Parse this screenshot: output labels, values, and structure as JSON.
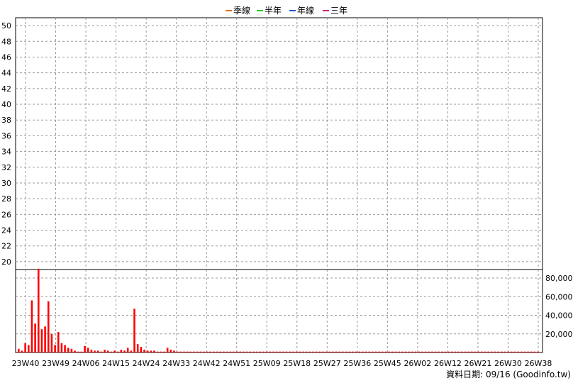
{
  "chart_data": {
    "type": "candlestick",
    "legend": [
      {
        "name": "季線",
        "color": "#e07020"
      },
      {
        "name": "半年",
        "color": "#22cc22"
      },
      {
        "name": "年線",
        "color": "#2255cc"
      },
      {
        "name": "三年",
        "color": "#cc2277"
      }
    ],
    "price_axis": {
      "ticks": [
        "20",
        "22",
        "24",
        "26",
        "28",
        "30",
        "32",
        "34",
        "36",
        "38",
        "40",
        "42",
        "44",
        "46",
        "48",
        "50"
      ],
      "range": [
        19,
        51
      ]
    },
    "volume_axis": {
      "ticks": [
        "20,000",
        "40,000",
        "60,000",
        "80,000"
      ],
      "range": [
        0,
        80000
      ]
    },
    "x_labels": [
      "23W40",
      "23W49",
      "24W06",
      "24W15",
      "24W24",
      "24W33",
      "24W42",
      "24W51",
      "25W09",
      "25W18",
      "25W27",
      "25W36",
      "25W45",
      "26W02",
      "26W12",
      "26W21",
      "26W30",
      "26W38"
    ],
    "series_colors": {
      "up": "#ff0000",
      "down": "#00a000",
      "volume": "#ff0000"
    },
    "volume": [
      4000,
      2000,
      10000,
      8000,
      56000,
      31000,
      90000,
      25000,
      28000,
      55000,
      20000,
      8000,
      22000,
      10000,
      8000,
      5000,
      4000,
      2000,
      1000,
      1000,
      7000,
      5000,
      3000,
      2000,
      2000,
      1000,
      3000,
      2000,
      1000,
      2000,
      1000,
      3000,
      2000,
      5000,
      2000,
      47000,
      9000,
      6000,
      3000,
      2000,
      2000,
      2000,
      1000,
      1000,
      1000,
      5000,
      3000,
      2000,
      1000,
      1000,
      1000,
      1000,
      1000,
      1000,
      1000,
      1000,
      1000,
      1000,
      1000,
      1000,
      1000,
      1000,
      1000,
      1000,
      1000,
      1000,
      1000,
      1000,
      1000,
      1000,
      1000,
      1000,
      1000,
      1000,
      1000,
      1000,
      1000,
      1000,
      1000,
      1000,
      1000,
      1000,
      1000,
      1000,
      1000,
      1000,
      1000,
      1000,
      1000,
      1000,
      1000,
      1000,
      1000,
      1000,
      1000,
      1000,
      1000,
      1000,
      1000,
      1000,
      1000,
      1000,
      1000,
      1000,
      1000,
      1000,
      1000,
      1000,
      1000,
      1000,
      1000,
      1000,
      1000,
      1000,
      1000,
      1000,
      1000,
      1000,
      1000,
      1000,
      1000,
      1000,
      1000,
      1000,
      1000,
      1000,
      1000,
      1000,
      1000,
      1000,
      1000,
      1000,
      1000,
      1000,
      1000,
      1000,
      1000,
      1000,
      1000,
      1000,
      1000,
      1000,
      1000,
      1000,
      1000,
      1000,
      1000,
      1000,
      1000,
      1000,
      1000,
      1000,
      1000,
      1000,
      1000,
      1000,
      1000,
      1000
    ],
    "footer": "資料日期: 09/16  (Goodinfo.tw)"
  }
}
